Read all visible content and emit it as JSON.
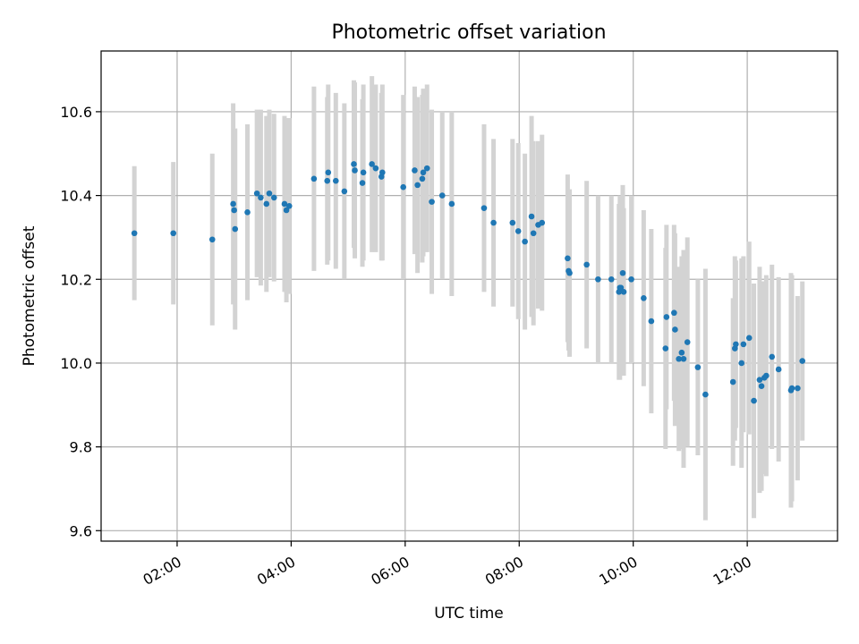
{
  "chart_data": {
    "type": "scatter",
    "title": "Photometric offset variation",
    "xlabel": "UTC time",
    "ylabel": "Photometric offset",
    "grid": true,
    "legend": false,
    "xlim": [
      "00:40",
      "13:35"
    ],
    "ylim": [
      9.575,
      10.745
    ],
    "xticks": [
      "02:00",
      "04:00",
      "06:00",
      "08:00",
      "10:00",
      "12:00"
    ],
    "yticks": [
      "9.6",
      "9.8",
      "10.0",
      "10.2",
      "10.4",
      "10.6"
    ],
    "x_tick_values": [
      "02:00",
      "04:00",
      "06:00",
      "08:00",
      "10:00",
      "12:00"
    ],
    "y_tick_values": [
      9.6,
      9.8,
      10.0,
      10.2,
      10.4,
      10.6
    ],
    "colors": {
      "points": "#1f77b4",
      "errorbars": "#d3d3d3",
      "grid": "#b0b0b0"
    },
    "series": [
      {
        "x": [
          "01:15",
          "01:56",
          "02:37",
          "02:59",
          "03:00",
          "03:01",
          "03:14",
          "03:24",
          "03:28",
          "03:34",
          "03:37",
          "03:42",
          "03:53",
          "03:55",
          "03:58",
          "04:24",
          "04:38",
          "04:39",
          "04:47",
          "04:56",
          "05:06",
          "05:07",
          "05:15",
          "05:16",
          "05:25",
          "05:29",
          "05:35",
          "05:36",
          "05:58",
          "06:10",
          "06:13",
          "06:18",
          "06:19",
          "06:23",
          "06:28",
          "06:39",
          "06:49",
          "07:23",
          "07:33",
          "07:53",
          "07:59",
          "08:06",
          "08:13",
          "08:15",
          "08:20",
          "08:24",
          "08:51",
          "08:52",
          "08:53",
          "09:11",
          "09:23",
          "09:37",
          "09:45",
          "09:46",
          "09:47",
          "09:49",
          "09:50",
          "09:58",
          "10:11",
          "10:19",
          "10:34",
          "10:35",
          "10:43",
          "10:44",
          "10:48",
          "10:51",
          "10:53",
          "10:57",
          "11:08",
          "11:16",
          "11:45",
          "11:47",
          "11:48",
          "11:54",
          "11:56",
          "12:02",
          "12:07",
          "12:13",
          "12:15",
          "12:18",
          "12:20",
          "12:26",
          "12:33",
          "12:46",
          "12:47",
          "12:53",
          "12:58"
        ],
        "y": [
          10.31,
          10.31,
          10.295,
          10.38,
          10.365,
          10.32,
          10.36,
          10.405,
          10.395,
          10.38,
          10.405,
          10.395,
          10.38,
          10.365,
          10.375,
          10.44,
          10.435,
          10.455,
          10.435,
          10.41,
          10.475,
          10.46,
          10.43,
          10.455,
          10.475,
          10.465,
          10.445,
          10.455,
          10.42,
          10.46,
          10.425,
          10.44,
          10.455,
          10.465,
          10.385,
          10.4,
          10.38,
          10.37,
          10.335,
          10.335,
          10.315,
          10.29,
          10.35,
          10.31,
          10.33,
          10.335,
          10.25,
          10.22,
          10.215,
          10.235,
          10.2,
          10.2,
          10.17,
          10.18,
          10.18,
          10.215,
          10.17,
          10.2,
          10.155,
          10.1,
          10.035,
          10.11,
          10.12,
          10.08,
          10.01,
          10.025,
          10.01,
          10.05,
          9.99,
          9.925,
          9.955,
          10.035,
          10.045,
          10.0,
          10.045,
          10.06,
          9.91,
          9.96,
          9.945,
          9.965,
          9.97,
          10.015,
          9.985,
          9.935,
          9.94,
          9.94,
          10.005
        ],
        "err": [
          0.16,
          0.17,
          0.205,
          0.24,
          0.19,
          0.24,
          0.21,
          0.2,
          0.21,
          0.21,
          0.2,
          0.2,
          0.21,
          0.22,
          0.21,
          0.22,
          0.2,
          0.21,
          0.21,
          0.21,
          0.2,
          0.21,
          0.2,
          0.21,
          0.21,
          0.2,
          0.2,
          0.21,
          0.22,
          0.2,
          0.21,
          0.2,
          0.2,
          0.2,
          0.22,
          0.2,
          0.22,
          0.2,
          0.2,
          0.2,
          0.21,
          0.21,
          0.24,
          0.22,
          0.2,
          0.21,
          0.2,
          0.19,
          0.2,
          0.2,
          0.2,
          0.2,
          0.21,
          0.22,
          0.21,
          0.21,
          0.2,
          0.2,
          0.21,
          0.22,
          0.24,
          0.22,
          0.21,
          0.23,
          0.22,
          0.23,
          0.26,
          0.25,
          0.21,
          0.3,
          0.2,
          0.22,
          0.2,
          0.25,
          0.21,
          0.23,
          0.28,
          0.27,
          0.25,
          0.23,
          0.24,
          0.22,
          0.22,
          0.28,
          0.27,
          0.22,
          0.19
        ]
      }
    ]
  }
}
